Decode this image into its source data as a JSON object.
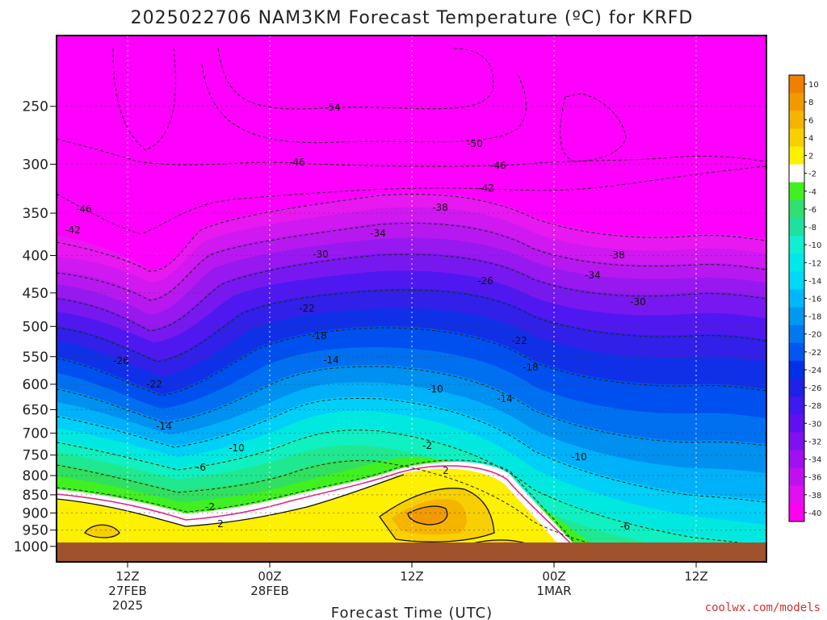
{
  "chart_data": {
    "type": "heatmap",
    "title": "2025022706 NAM3KM Forecast Temperature (ºC) for KRFD",
    "xlabel": "Forecast Time (UTC)",
    "ylabel": "",
    "credit": "coolwx.com/models",
    "y_ticks": [
      "250",
      "300",
      "350",
      "400",
      "450",
      "500",
      "550",
      "600",
      "650",
      "700",
      "750",
      "800",
      "850",
      "900",
      "950",
      "1000"
    ],
    "y_scale": "log-pressure",
    "ylim": [
      200,
      1050
    ],
    "x_ticks": [
      {
        "label": "12Z",
        "sub1": "27FEB",
        "sub2": "2025"
      },
      {
        "label": "00Z",
        "sub1": "28FEB",
        "sub2": ""
      },
      {
        "label": "12Z",
        "sub1": "",
        "sub2": ""
      },
      {
        "label": "00Z",
        "sub1": "1MAR",
        "sub2": ""
      },
      {
        "label": "12Z",
        "sub1": "",
        "sub2": ""
      }
    ],
    "colorbar": {
      "labels": [
        "10",
        "8",
        "6",
        "4",
        "2",
        "-2",
        "-4",
        "-6",
        "-8",
        "-10",
        "-12",
        "-14",
        "-16",
        "-18",
        "-20",
        "-22",
        "-24",
        "-26",
        "-28",
        "-30",
        "-32",
        "-34",
        "-36",
        "-38",
        "-40"
      ],
      "colors": [
        "#f08000",
        "#f09a00",
        "#f5b400",
        "#f8cf00",
        "#fdf000",
        "#ffffff",
        "#40f020",
        "#30e070",
        "#20e0a0",
        "#10f0d0",
        "#00e8e8",
        "#00d8f8",
        "#00b8f8",
        "#0098f0",
        "#0078f0",
        "#0058f0",
        "#0030e8",
        "#2020e8",
        "#4018f0",
        "#6010f0",
        "#8010f0",
        "#a010f0",
        "#c010f0",
        "#e010f0",
        "#ff00f0"
      ]
    },
    "contour_labels": [
      {
        "text": "-54"
      },
      {
        "text": "-50"
      },
      {
        "text": "-46"
      },
      {
        "text": "-46"
      },
      {
        "text": "-42"
      },
      {
        "text": "-46"
      },
      {
        "text": "-42"
      },
      {
        "text": "-38"
      },
      {
        "text": "-34"
      },
      {
        "text": "-30"
      },
      {
        "text": "-38"
      },
      {
        "text": "-34"
      },
      {
        "text": "-26"
      },
      {
        "text": "-30"
      },
      {
        "text": "-22"
      },
      {
        "text": "-18"
      },
      {
        "text": "-22"
      },
      {
        "text": "-26"
      },
      {
        "text": "-22"
      },
      {
        "text": "-14"
      },
      {
        "text": "-18"
      },
      {
        "text": "-10"
      },
      {
        "text": "-14"
      },
      {
        "text": "-14"
      },
      {
        "text": "-10"
      },
      {
        "text": "-6"
      },
      {
        "text": "-10"
      },
      {
        "text": "-2"
      },
      {
        "text": "2"
      },
      {
        "text": "-2"
      },
      {
        "text": "2"
      },
      {
        "text": "-6"
      }
    ],
    "surface_color": "#a0522d",
    "background_color": "#ff00ff"
  }
}
